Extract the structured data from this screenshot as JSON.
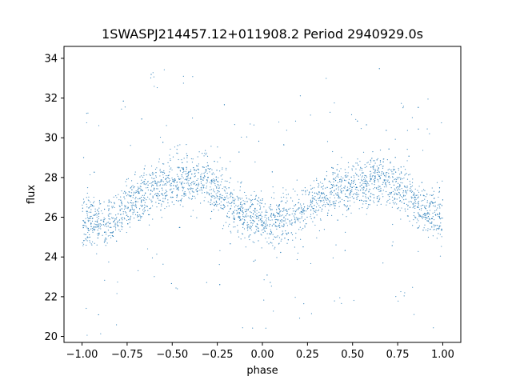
{
  "chart_data": {
    "type": "scatter",
    "title": "1SWASPJ214457.12+011908.2 Period 2940929.0s",
    "xlabel": "phase",
    "ylabel": "flux",
    "xlim": [
      -1.1,
      1.1
    ],
    "ylim": [
      19.7,
      34.6
    ],
    "xticks": [
      -1.0,
      -0.75,
      -0.5,
      -0.25,
      0.0,
      0.25,
      0.5,
      0.75,
      1.0
    ],
    "xtick_labels": [
      "−1.00",
      "−0.75",
      "−0.50",
      "−0.25",
      "0.00",
      "0.25",
      "0.50",
      "0.75",
      "1.00"
    ],
    "yticks": [
      20,
      22,
      24,
      26,
      28,
      30,
      32,
      34
    ],
    "ytick_labels": [
      "20",
      "22",
      "24",
      "26",
      "28",
      "30",
      "32",
      "34"
    ],
    "grid": false,
    "point_color": "#1f77b4",
    "series": [
      {
        "phase_range": [
          -1.0,
          1.0
        ],
        "trend_x": [
          -1.0,
          -0.9,
          -0.8,
          -0.7,
          -0.6,
          -0.5,
          -0.4,
          -0.3,
          -0.25,
          -0.2,
          -0.1,
          0.0,
          0.1,
          0.2,
          0.3,
          0.4,
          0.5,
          0.6,
          0.7,
          0.75,
          0.8,
          0.9,
          1.0
        ],
        "trend_y": [
          26.0,
          25.7,
          26.1,
          27.0,
          27.4,
          27.8,
          27.9,
          27.8,
          27.5,
          26.8,
          26.1,
          25.9,
          25.8,
          26.2,
          27.0,
          27.3,
          27.6,
          27.8,
          27.9,
          27.6,
          27.1,
          26.3,
          26.0
        ]
      }
    ]
  }
}
